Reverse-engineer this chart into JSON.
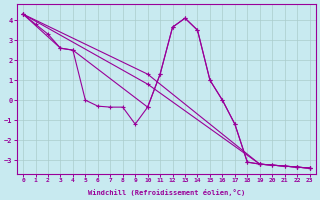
{
  "xlabel": "Windchill (Refroidissement éolien,°C)",
  "bg_color": "#c8eaf0",
  "line_color": "#990099",
  "grid_color": "#aacccc",
  "xlim": [
    -0.5,
    23.5
  ],
  "ylim": [
    -3.7,
    4.8
  ],
  "yticks": [
    -3,
    -2,
    -1,
    0,
    1,
    2,
    3,
    4
  ],
  "xticks": [
    0,
    1,
    2,
    3,
    4,
    5,
    6,
    7,
    8,
    9,
    10,
    11,
    12,
    13,
    14,
    15,
    16,
    17,
    18,
    19,
    20,
    21,
    22,
    23
  ],
  "series": [
    {
      "x": [
        0,
        1,
        2,
        3,
        4,
        5,
        6,
        7,
        8,
        9,
        10,
        11,
        12,
        13,
        14,
        15,
        16,
        17,
        18,
        19,
        20,
        21,
        22,
        23
      ],
      "y": [
        4.3,
        3.8,
        3.3,
        2.6,
        2.5,
        0.0,
        -0.3,
        -0.35,
        -0.35,
        -1.2,
        -0.35,
        1.3,
        3.65,
        4.1,
        3.5,
        1.0,
        0.0,
        -1.2,
        -3.1,
        -3.2,
        -3.25,
        -3.3,
        -3.35,
        -3.4
      ]
    },
    {
      "x": [
        0,
        3,
        4,
        10,
        11,
        12,
        13,
        14,
        15,
        16,
        17,
        18,
        19,
        20,
        21,
        22,
        23
      ],
      "y": [
        4.3,
        2.6,
        2.5,
        -0.35,
        1.3,
        3.65,
        4.1,
        3.5,
        1.0,
        0.0,
        -1.2,
        -3.1,
        -3.2,
        -3.25,
        -3.3,
        -3.35,
        -3.4
      ]
    },
    {
      "x": [
        0,
        10,
        19,
        22,
        23
      ],
      "y": [
        4.3,
        1.3,
        -3.2,
        -3.35,
        -3.4
      ]
    },
    {
      "x": [
        0,
        10,
        19,
        22,
        23
      ],
      "y": [
        4.3,
        0.8,
        -3.2,
        -3.35,
        -3.4
      ]
    }
  ]
}
